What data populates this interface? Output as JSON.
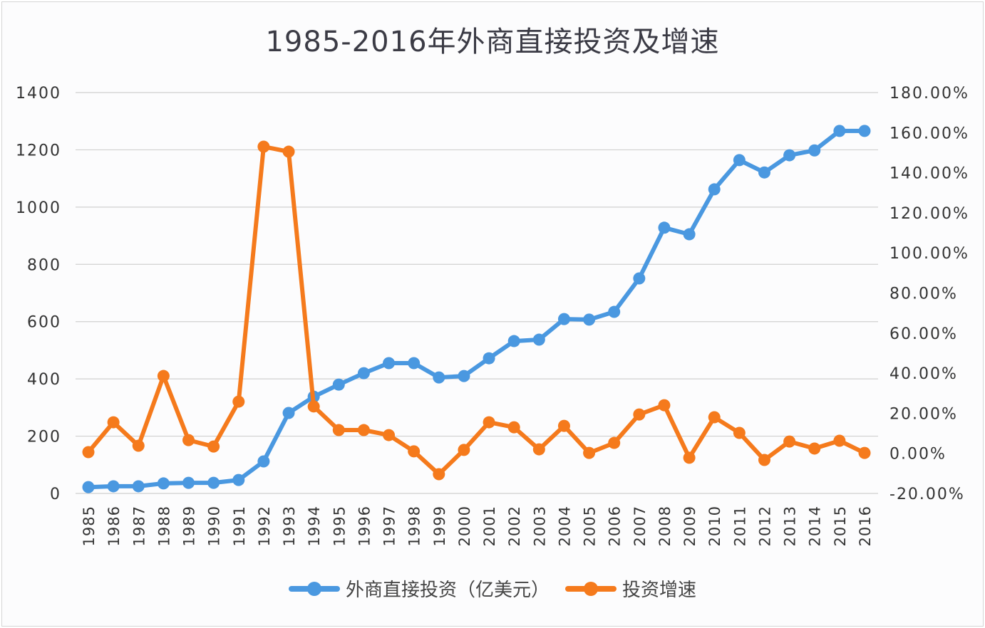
{
  "chart_data": {
    "type": "line",
    "title": "1985-2016年外商直接投资及增速",
    "xlabel": "",
    "ylabel": "",
    "ylabel_right": "",
    "grid": true,
    "legend_position": "bottom",
    "categories": [
      "1985",
      "1986",
      "1987",
      "1988",
      "1989",
      "1990",
      "1991",
      "1992",
      "1993",
      "1994",
      "1995",
      "1996",
      "1997",
      "1998",
      "1999",
      "2000",
      "2001",
      "2002",
      "2003",
      "2004",
      "2005",
      "2006",
      "2007",
      "2008",
      "2009",
      "2010",
      "2011",
      "2012",
      "2013",
      "2014",
      "2015",
      "2016"
    ],
    "y_left": {
      "ylim": [
        0,
        1400
      ],
      "ticks": [
        "0",
        "200",
        "400",
        "600",
        "800",
        "1000",
        "1200",
        "1400"
      ]
    },
    "y_right": {
      "ylim": [
        -20,
        180
      ],
      "ticks": [
        "-20.00%",
        "0.00%",
        "20.00%",
        "40.00%",
        "60.00%",
        "80.00%",
        "100.00%",
        "120.00%",
        "140.00%",
        "160.00%",
        "180.00%"
      ]
    },
    "series": [
      {
        "name": "外商直接投资（亿美元）",
        "axis": "left",
        "color": "#4a98e0",
        "values": [
          22,
          25,
          25,
          35,
          37,
          37,
          47,
          112,
          281,
          338,
          380,
          420,
          455,
          455,
          405,
          410,
          472,
          532,
          537,
          609,
          607,
          634,
          751,
          928,
          905,
          1062,
          1164,
          1121,
          1181,
          1198,
          1266,
          1266
        ]
      },
      {
        "name": "投资增速",
        "axis": "right",
        "unit": "%",
        "color": "#f57a1c",
        "values": [
          0.6,
          15.5,
          3.8,
          38.6,
          6.6,
          3.4,
          25.8,
          153.0,
          150.5,
          23.4,
          11.6,
          11.6,
          9.1,
          1.0,
          -10.4,
          1.7,
          15.5,
          13.0,
          2.0,
          13.7,
          0.2,
          5.2,
          19.4,
          24.0,
          -2.2,
          18.0,
          10.2,
          -3.3,
          5.9,
          2.4,
          6.3,
          0.2
        ]
      }
    ]
  },
  "legend": {
    "items": [
      {
        "label": "外商直接投资（亿美元）",
        "color": "#4a98e0"
      },
      {
        "label": "投资增速",
        "color": "#f57a1c"
      }
    ]
  }
}
